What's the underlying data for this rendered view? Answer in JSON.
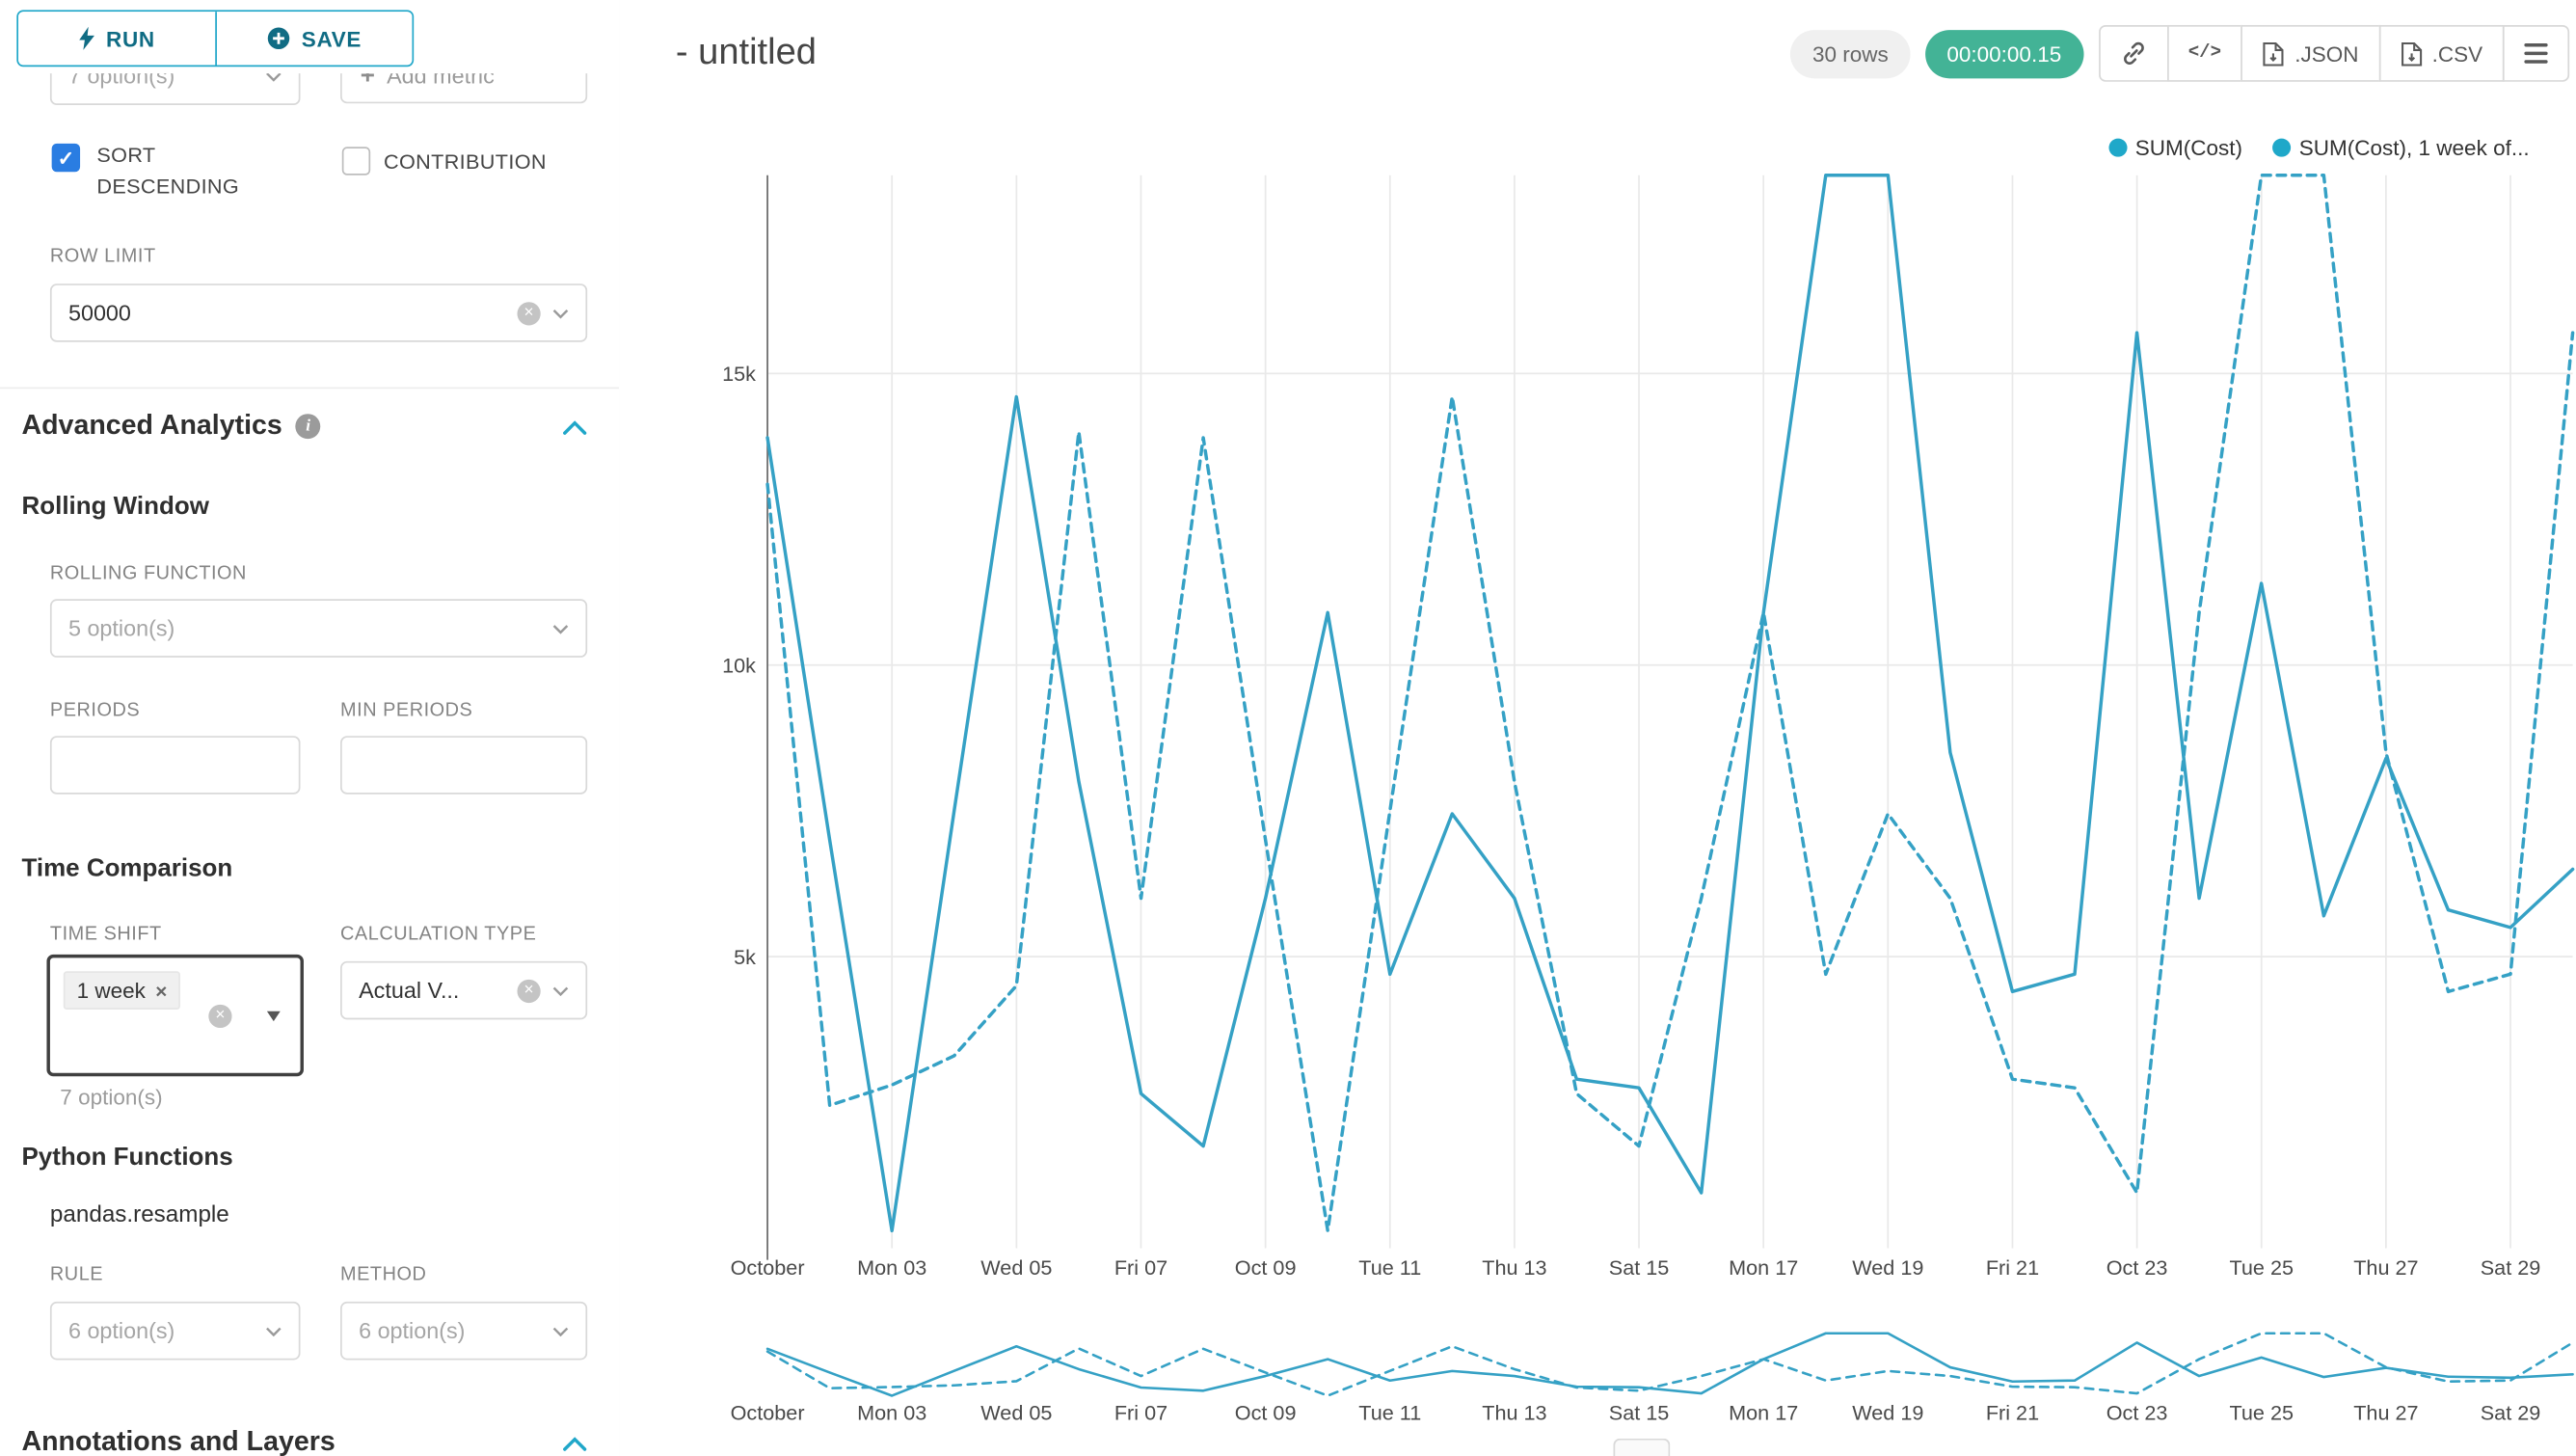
{
  "icons": {
    "plus": "+",
    "clear": "×",
    "check": "✓",
    "code": "</>",
    "info": "i"
  },
  "colors": {
    "accent": "#20a7c9",
    "timer_badge": "#43b396",
    "checkbox_checked": "#2a7de2",
    "line": "#35a1c5"
  },
  "toolbar": {
    "run": "RUN",
    "save": "SAVE"
  },
  "controls": {
    "metric_placeholder": "7 option(s)",
    "add_metric": "Add metric",
    "sort_descending": "SORT DESCENDING",
    "contribution": "CONTRIBUTION",
    "row_limit_label": "ROW LIMIT",
    "row_limit_value": "50000"
  },
  "advanced_analytics": {
    "title": "Advanced Analytics",
    "rolling_window_title": "Rolling Window",
    "rolling_function_label": "ROLLING FUNCTION",
    "rolling_function_placeholder": "5 option(s)",
    "periods_label": "PERIODS",
    "min_periods_label": "MIN PERIODS",
    "time_comparison_title": "Time Comparison",
    "time_shift_label": "TIME SHIFT",
    "time_shift_tag": "1 week",
    "time_shift_hint": "7 option(s)",
    "calculation_type_label": "CALCULATION TYPE",
    "calculation_type_value": "Actual V...",
    "python_functions_title": "Python Functions",
    "python_functions_subtitle": "pandas.resample",
    "rule_label": "RULE",
    "rule_placeholder": "6 option(s)",
    "method_label": "METHOD",
    "method_placeholder": "6 option(s)"
  },
  "annotations_title": "Annotations and Layers",
  "header": {
    "title": "- untitled",
    "rows_badge": "30 rows",
    "timer_badge": "00:00:00.15",
    "json": ".JSON",
    "csv": ".CSV"
  },
  "chart_data": {
    "type": "line",
    "title": "- untitled",
    "x_labels": [
      "October",
      "Mon 03",
      "Wed 05",
      "Fri 07",
      "Oct 09",
      "Tue 11",
      "Thu 13",
      "Sat 15",
      "Mon 17",
      "Wed 19",
      "Fri 21",
      "Oct 23",
      "Tue 25",
      "Thu 27",
      "Sat 29"
    ],
    "y_ticks": [
      "5k",
      "10k",
      "15k"
    ],
    "y_tick_values": [
      5,
      10,
      15
    ],
    "ylim": [
      0,
      18.4
    ],
    "unit": "thousands",
    "grid": true,
    "legend_position": "top-right",
    "color": "#35a1c5",
    "series": [
      {
        "name": "SUM(Cost)",
        "label": "SUM(Cost)",
        "style": "solid",
        "values": [
          13.9,
          7.0,
          0.3,
          7.5,
          14.6,
          8.0,
          2.65,
          1.75,
          6.0,
          10.9,
          4.7,
          7.45,
          6.0,
          2.9,
          2.75,
          0.95,
          10.9,
          18.4,
          18.5,
          8.5,
          4.4,
          4.7,
          15.7,
          6.0,
          11.4,
          5.7,
          8.4,
          5.8,
          5.5,
          6.5
        ]
      },
      {
        "name": "SUM(Cost), 1 week offset",
        "label": "SUM(Cost), 1 week of...",
        "style": "dashed",
        "values": [
          13.1,
          2.45,
          2.8,
          3.3,
          4.5,
          14.0,
          6.0,
          13.9,
          7.0,
          0.3,
          7.5,
          14.6,
          8.0,
          2.65,
          1.75,
          6.0,
          10.9,
          4.7,
          7.45,
          6.0,
          2.9,
          2.75,
          0.95,
          10.9,
          18.4,
          18.5,
          8.5,
          4.4,
          4.7,
          15.7
        ]
      }
    ]
  }
}
